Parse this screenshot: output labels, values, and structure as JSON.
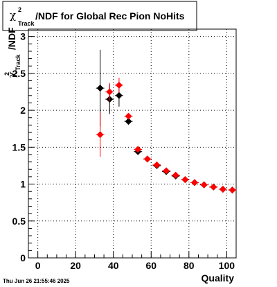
{
  "chart_data": {
    "type": "scatter",
    "title": "/NDF for Global Rec Pion NoHits",
    "title_symbol": "χ",
    "title_sup": "2",
    "title_sub": "Track",
    "xlabel": "Quality",
    "ylabel": "/NDF",
    "ylabel_symbol": "χ",
    "ylabel_sup": "2",
    "ylabel_sub": "Track",
    "xlim": [
      -5,
      105
    ],
    "ylim": [
      0,
      3.1
    ],
    "x_ticks": [
      0,
      20,
      40,
      60,
      80,
      100
    ],
    "y_ticks": [
      0,
      0.5,
      1,
      1.5,
      2,
      2.5,
      3
    ],
    "grid": true,
    "marker": "diamond",
    "series": [
      {
        "color": "#000000",
        "points": [
          {
            "x": 33,
            "y": 2.3,
            "yerr": 0.52
          },
          {
            "x": 38,
            "y": 2.15,
            "yerr": 0.2
          },
          {
            "x": 43,
            "y": 2.2,
            "yerr": 0.15
          },
          {
            "x": 48,
            "y": 1.85,
            "yerr": 0.04
          },
          {
            "x": 53,
            "y": 1.44,
            "yerr": 0.02
          },
          {
            "x": 58,
            "y": 1.34,
            "yerr": 0.01
          },
          {
            "x": 63,
            "y": 1.25,
            "yerr": 0.01
          },
          {
            "x": 68,
            "y": 1.17,
            "yerr": 0.01
          },
          {
            "x": 73,
            "y": 1.11,
            "yerr": 0.01
          },
          {
            "x": 78,
            "y": 1.06,
            "yerr": 0.01
          },
          {
            "x": 83,
            "y": 1.02,
            "yerr": 0.01
          },
          {
            "x": 88,
            "y": 0.99,
            "yerr": 0.01
          },
          {
            "x": 93,
            "y": 0.96,
            "yerr": 0.01
          },
          {
            "x": 98,
            "y": 0.93,
            "yerr": 0.01
          },
          {
            "x": 103,
            "y": 0.92,
            "yerr": 0.01
          }
        ]
      },
      {
        "color": "#ff0000",
        "points": [
          {
            "x": 33,
            "y": 1.67,
            "yerr": 0.3
          },
          {
            "x": 38,
            "y": 2.25,
            "yerr": 0.12
          },
          {
            "x": 43,
            "y": 2.34,
            "yerr": 0.1
          },
          {
            "x": 48,
            "y": 1.92,
            "yerr": 0.04
          },
          {
            "x": 53,
            "y": 1.47,
            "yerr": 0.02
          },
          {
            "x": 58,
            "y": 1.34,
            "yerr": 0.01
          },
          {
            "x": 63,
            "y": 1.26,
            "yerr": 0.01
          },
          {
            "x": 68,
            "y": 1.18,
            "yerr": 0.01
          },
          {
            "x": 73,
            "y": 1.12,
            "yerr": 0.01
          },
          {
            "x": 78,
            "y": 1.06,
            "yerr": 0.01
          },
          {
            "x": 83,
            "y": 1.02,
            "yerr": 0.01
          },
          {
            "x": 88,
            "y": 0.99,
            "yerr": 0.01
          },
          {
            "x": 93,
            "y": 0.96,
            "yerr": 0.01
          },
          {
            "x": 98,
            "y": 0.93,
            "yerr": 0.01
          },
          {
            "x": 103,
            "y": 0.92,
            "yerr": 0.01
          }
        ]
      }
    ]
  },
  "footer": {
    "timestamp": "Thu Jun 26 21:55:46 2025"
  }
}
